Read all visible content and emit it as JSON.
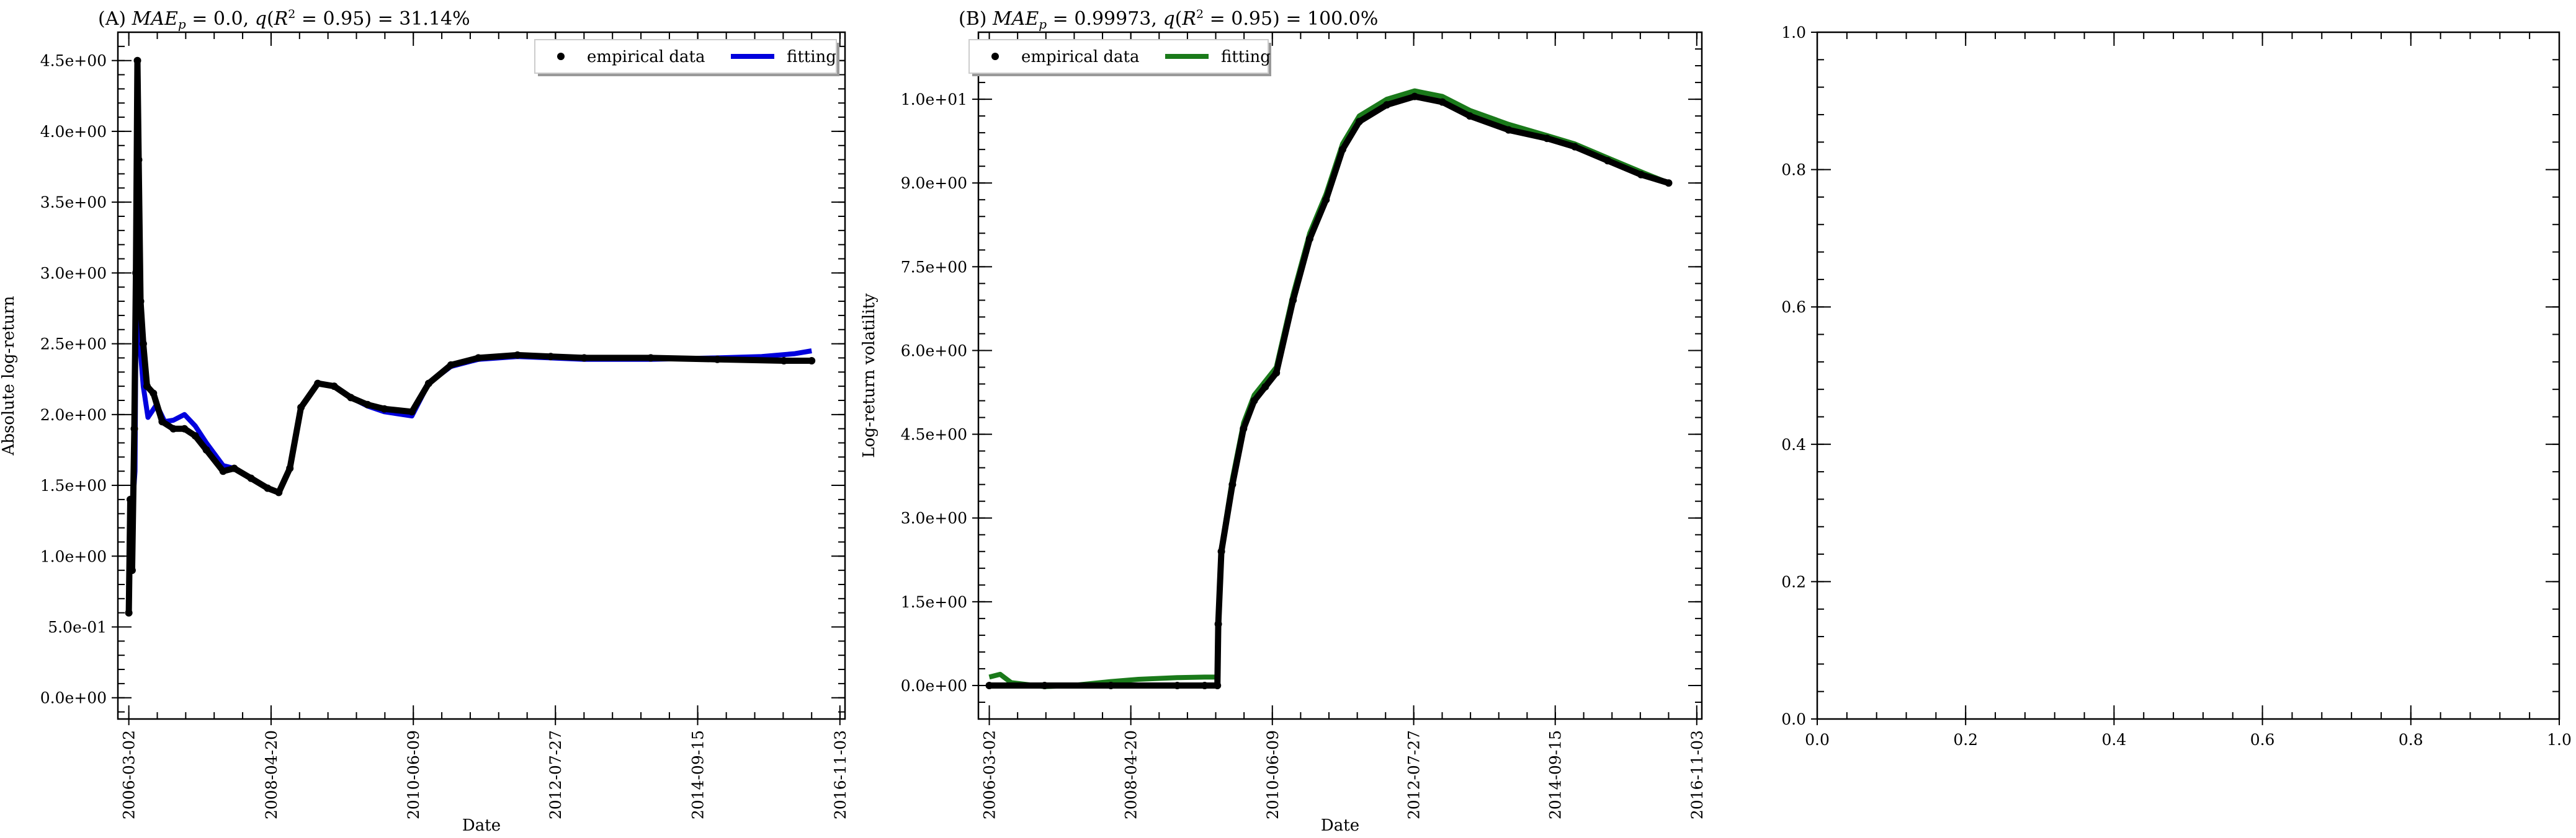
{
  "chart_data": [
    {
      "type": "line",
      "title": "(A) MAE_p = 0.0, q(R² = 0.95) = 31.14%",
      "xlabel": "Date",
      "ylabel": "Absolute log-return",
      "x_tick_labels": [
        "2006-03-02",
        "2008-04-20",
        "2010-06-09",
        "2012-07-27",
        "2014-09-15",
        "2016-11-03"
      ],
      "x_ticks": [
        "2006-03-02",
        "2008-04-20",
        "2010-06-09",
        "2012-07-27",
        "2014-09-15",
        "2016-11-03"
      ],
      "xlim": [
        "2006-01-01",
        "2016-12-01"
      ],
      "y_tick_labels": [
        "0.0e+00",
        "5.0e-01",
        "1.0e+00",
        "1.5e+00",
        "2.0e+00",
        "2.5e+00",
        "3.0e+00",
        "3.5e+00",
        "4.0e+00",
        "4.5e+00"
      ],
      "y_ticks": [
        0,
        0.5,
        1.0,
        1.5,
        2.0,
        2.5,
        3.0,
        3.5,
        4.0,
        4.5
      ],
      "ylim": [
        -0.15,
        4.7
      ],
      "legend_position": "top-right",
      "series": [
        {
          "name": "empirical data",
          "style": "dots",
          "color": "#000000",
          "points": [
            [
              "2006-03-02",
              0.6
            ],
            [
              "2006-03-10",
              1.4
            ],
            [
              "2006-03-20",
              0.9
            ],
            [
              "2006-04-01",
              1.9
            ],
            [
              "2006-04-10",
              3.0
            ],
            [
              "2006-04-18",
              4.5
            ],
            [
              "2006-04-25",
              3.8
            ],
            [
              "2006-05-05",
              2.8
            ],
            [
              "2006-05-20",
              2.5
            ],
            [
              "2006-06-10",
              2.2
            ],
            [
              "2006-07-15",
              2.15
            ],
            [
              "2006-09-01",
              1.95
            ],
            [
              "2006-11-01",
              1.9
            ],
            [
              "2007-01-01",
              1.9
            ],
            [
              "2007-03-01",
              1.85
            ],
            [
              "2007-05-01",
              1.75
            ],
            [
              "2007-08-01",
              1.6
            ],
            [
              "2007-10-01",
              1.62
            ],
            [
              "2008-01-01",
              1.55
            ],
            [
              "2008-04-01",
              1.48
            ],
            [
              "2008-06-01",
              1.45
            ],
            [
              "2008-08-01",
              1.62
            ],
            [
              "2008-10-01",
              2.05
            ],
            [
              "2009-01-01",
              2.22
            ],
            [
              "2009-04-01",
              2.2
            ],
            [
              "2009-07-01",
              2.12
            ],
            [
              "2009-10-01",
              2.07
            ],
            [
              "2010-01-01",
              2.04
            ],
            [
              "2010-06-01",
              2.02
            ],
            [
              "2010-09-01",
              2.22
            ],
            [
              "2011-01-01",
              2.35
            ],
            [
              "2011-06-01",
              2.4
            ],
            [
              "2012-01-01",
              2.42
            ],
            [
              "2012-07-01",
              2.41
            ],
            [
              "2013-01-01",
              2.4
            ],
            [
              "2014-01-01",
              2.4
            ],
            [
              "2015-01-01",
              2.39
            ],
            [
              "2016-01-01",
              2.38
            ],
            [
              "2016-06-01",
              2.38
            ]
          ]
        },
        {
          "name": "fitting",
          "style": "line",
          "color": "#0000dd",
          "points": [
            [
              "2006-03-02",
              0.85
            ],
            [
              "2006-03-20",
              1.3
            ],
            [
              "2006-04-05",
              1.6
            ],
            [
              "2006-04-15",
              3.6
            ],
            [
              "2006-05-01",
              2.5
            ],
            [
              "2006-05-20",
              2.2
            ],
            [
              "2006-06-15",
              1.98
            ],
            [
              "2006-08-01",
              2.07
            ],
            [
              "2006-09-15",
              1.95
            ],
            [
              "2006-11-01",
              1.96
            ],
            [
              "2007-01-01",
              2.0
            ],
            [
              "2007-03-01",
              1.92
            ],
            [
              "2007-05-01",
              1.8
            ],
            [
              "2007-08-01",
              1.64
            ],
            [
              "2007-10-01",
              1.62
            ],
            [
              "2008-01-01",
              1.55
            ],
            [
              "2008-04-01",
              1.48
            ],
            [
              "2008-06-01",
              1.45
            ],
            [
              "2008-08-01",
              1.62
            ],
            [
              "2008-10-01",
              2.05
            ],
            [
              "2009-01-01",
              2.22
            ],
            [
              "2009-04-01",
              2.2
            ],
            [
              "2009-07-01",
              2.12
            ],
            [
              "2009-10-01",
              2.06
            ],
            [
              "2010-01-01",
              2.02
            ],
            [
              "2010-06-01",
              1.99
            ],
            [
              "2010-09-01",
              2.22
            ],
            [
              "2011-01-01",
              2.34
            ],
            [
              "2011-06-01",
              2.39
            ],
            [
              "2012-01-01",
              2.41
            ],
            [
              "2012-07-01",
              2.4
            ],
            [
              "2013-01-01",
              2.39
            ],
            [
              "2014-01-01",
              2.39
            ],
            [
              "2015-01-01",
              2.4
            ],
            [
              "2015-09-01",
              2.41
            ],
            [
              "2016-03-01",
              2.43
            ],
            [
              "2016-06-01",
              2.45
            ]
          ]
        }
      ]
    },
    {
      "type": "line",
      "title": "(B) MAE_p = 0.99973, q(R² = 0.95) = 100.0%",
      "xlabel": "Date",
      "ylabel": "Log-return volatility",
      "x_tick_labels": [
        "2006-03-02",
        "2008-04-20",
        "2010-06-09",
        "2012-07-27",
        "2014-09-15",
        "2016-11-03"
      ],
      "x_ticks": [
        "2006-03-02",
        "2008-04-20",
        "2010-06-09",
        "2012-07-27",
        "2014-09-15",
        "2016-11-03"
      ],
      "xlim": [
        "2006-01-01",
        "2016-12-01"
      ],
      "y_tick_labels": [
        "0.0e+00",
        "1.5e+00",
        "3.0e+00",
        "4.5e+00",
        "6.0e+00",
        "7.5e+00",
        "9.0e+00",
        "1.0e+01"
      ],
      "y_ticks": [
        0,
        1.5,
        3.0,
        4.5,
        6.0,
        7.5,
        9.0,
        10.5
      ],
      "ylim": [
        -0.6,
        11.7
      ],
      "legend_position": "top-left",
      "series": [
        {
          "name": "empirical data",
          "style": "dots",
          "color": "#000000",
          "points": [
            [
              "2006-03-02",
              0.0
            ],
            [
              "2007-01-01",
              0.0
            ],
            [
              "2008-01-01",
              0.0
            ],
            [
              "2009-01-01",
              0.0
            ],
            [
              "2009-06-01",
              0.0
            ],
            [
              "2009-08-10",
              0.0
            ],
            [
              "2009-08-15",
              1.1
            ],
            [
              "2009-09-01",
              2.4
            ],
            [
              "2009-11-01",
              3.6
            ],
            [
              "2010-01-01",
              4.6
            ],
            [
              "2010-03-01",
              5.1
            ],
            [
              "2010-05-01",
              5.35
            ],
            [
              "2010-07-01",
              5.6
            ],
            [
              "2010-10-01",
              6.9
            ],
            [
              "2011-01-01",
              8.0
            ],
            [
              "2011-04-01",
              8.7
            ],
            [
              "2011-07-01",
              9.6
            ],
            [
              "2011-10-01",
              10.1
            ],
            [
              "2012-03-01",
              10.4
            ],
            [
              "2012-08-01",
              10.55
            ],
            [
              "2013-01-01",
              10.45
            ],
            [
              "2013-06-01",
              10.2
            ],
            [
              "2014-01-01",
              9.95
            ],
            [
              "2014-08-01",
              9.8
            ],
            [
              "2015-01-01",
              9.65
            ],
            [
              "2015-07-01",
              9.4
            ],
            [
              "2016-01-01",
              9.15
            ],
            [
              "2016-06-01",
              9.0
            ]
          ]
        },
        {
          "name": "fitting",
          "style": "line",
          "color": "#1a7a1a",
          "points": [
            [
              "2006-03-02",
              0.15
            ],
            [
              "2006-05-01",
              0.2
            ],
            [
              "2006-07-01",
              0.05
            ],
            [
              "2007-01-01",
              -0.02
            ],
            [
              "2007-06-01",
              0.0
            ],
            [
              "2008-01-01",
              0.07
            ],
            [
              "2008-06-01",
              0.11
            ],
            [
              "2009-01-01",
              0.14
            ],
            [
              "2009-06-01",
              0.15
            ],
            [
              "2009-08-10",
              0.15
            ],
            [
              "2009-08-15",
              1.2
            ],
            [
              "2009-09-01",
              2.45
            ],
            [
              "2009-11-01",
              3.7
            ],
            [
              "2010-01-01",
              4.7
            ],
            [
              "2010-03-01",
              5.2
            ],
            [
              "2010-05-01",
              5.45
            ],
            [
              "2010-07-01",
              5.7
            ],
            [
              "2010-10-01",
              7.0
            ],
            [
              "2011-01-01",
              8.1
            ],
            [
              "2011-04-01",
              8.8
            ],
            [
              "2011-07-01",
              9.7
            ],
            [
              "2011-10-01",
              10.2
            ],
            [
              "2012-03-01",
              10.5
            ],
            [
              "2012-08-01",
              10.65
            ],
            [
              "2013-01-01",
              10.55
            ],
            [
              "2013-06-01",
              10.3
            ],
            [
              "2014-01-01",
              10.05
            ],
            [
              "2014-08-01",
              9.85
            ],
            [
              "2015-01-01",
              9.7
            ],
            [
              "2015-07-01",
              9.45
            ],
            [
              "2016-01-01",
              9.2
            ],
            [
              "2016-06-01",
              9.0
            ]
          ]
        }
      ]
    },
    {
      "type": "line",
      "title": "",
      "xlabel": "",
      "ylabel": "",
      "x_tick_labels": [
        "0.0",
        "0.2",
        "0.4",
        "0.6",
        "0.8",
        "1.0"
      ],
      "x_ticks": [
        0,
        0.2,
        0.4,
        0.6,
        0.8,
        1.0
      ],
      "xlim": [
        0,
        1
      ],
      "y_tick_labels": [
        "0.0",
        "0.2",
        "0.4",
        "0.6",
        "0.8",
        "1.0"
      ],
      "y_ticks": [
        0,
        0.2,
        0.4,
        0.6,
        0.8,
        1.0
      ],
      "ylim": [
        0,
        1
      ],
      "series": []
    }
  ]
}
